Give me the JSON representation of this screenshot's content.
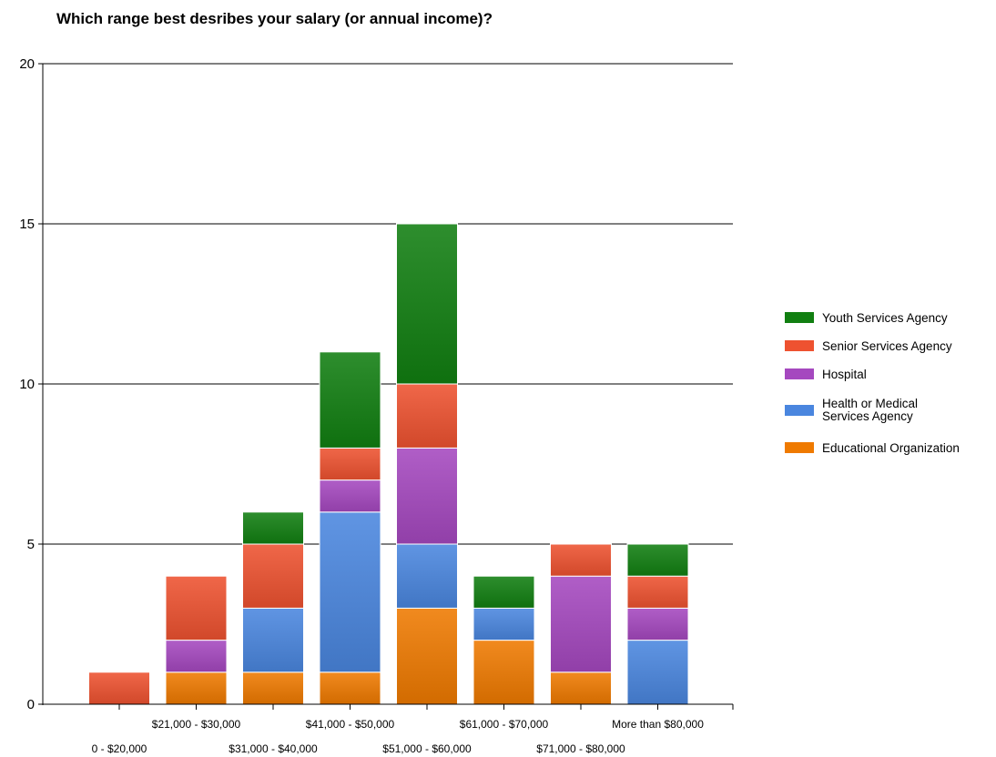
{
  "chart_data": {
    "type": "bar",
    "stacked": true,
    "title": "Which range best desribes your salary (or annual income)?",
    "xlabel": "",
    "ylabel": "",
    "ylim": [
      0,
      20
    ],
    "yticks": [
      0,
      5,
      10,
      15,
      20
    ],
    "grid": true,
    "legend_position": "right",
    "categories": [
      "0 - $20,000",
      "$21,000 - $30,000",
      "$31,000 - $40,000",
      "$41,000 - $50,000",
      "$51,000 - $60,000",
      "$61,000 - $70,000",
      "$71,000 - $80,000",
      "More than $80,000"
    ],
    "series": [
      {
        "name": "Educational Organization",
        "color": "#ef7a00",
        "values": [
          0,
          1,
          1,
          1,
          3,
          2,
          1,
          0
        ]
      },
      {
        "name": "Health or Medical Services Agency",
        "color": "#4a86df",
        "values": [
          0,
          0,
          2,
          5,
          2,
          1,
          0,
          2
        ]
      },
      {
        "name": "Hospital",
        "color": "#a548bf",
        "values": [
          0,
          1,
          0,
          1,
          3,
          0,
          3,
          1
        ]
      },
      {
        "name": "Senior Services Agency",
        "color": "#ee5230",
        "values": [
          1,
          2,
          2,
          1,
          2,
          0,
          1,
          1
        ]
      },
      {
        "name": "Youth Services Agency",
        "color": "#117f11",
        "values": [
          0,
          0,
          1,
          3,
          5,
          1,
          0,
          1
        ]
      }
    ]
  }
}
